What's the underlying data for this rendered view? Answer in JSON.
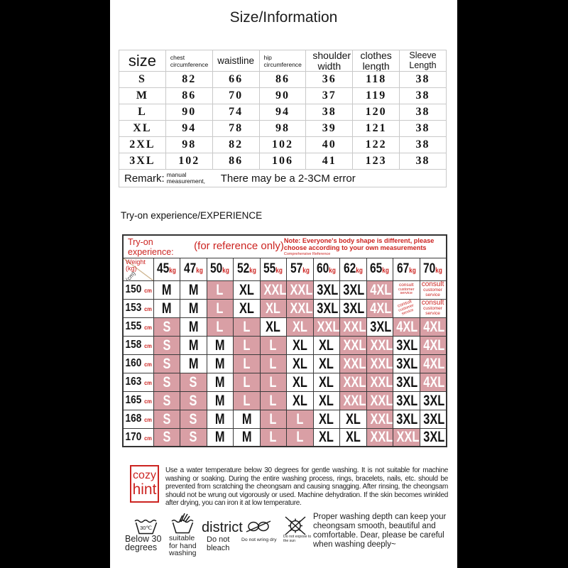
{
  "title": "Size/Information",
  "size_table": {
    "headers": [
      "size",
      "chest circumference",
      "waistline",
      "hip circumference",
      "shoulder width",
      "clothes length",
      "Sleeve Length"
    ],
    "rows": [
      {
        "size": "S",
        "values": [
          "82",
          "66",
          "86",
          "36",
          "118",
          "38"
        ]
      },
      {
        "size": "M",
        "values": [
          "86",
          "70",
          "90",
          "37",
          "119",
          "38"
        ]
      },
      {
        "size": "L",
        "values": [
          "90",
          "74",
          "94",
          "38",
          "120",
          "38"
        ]
      },
      {
        "size": "XL",
        "values": [
          "94",
          "78",
          "98",
          "39",
          "121",
          "38"
        ]
      },
      {
        "size": "2XL",
        "values": [
          "98",
          "82",
          "102",
          "40",
          "122",
          "38"
        ]
      },
      {
        "size": "3XL",
        "values": [
          "102",
          "86",
          "106",
          "41",
          "123",
          "38"
        ]
      }
    ],
    "remark_label": "Remark:",
    "remark_sub": "manual measurement,",
    "remark_text": "There may be a 2-3CM error"
  },
  "tryon": {
    "heading": "Try-on experience/EXPERIENCE",
    "corner_title": "Try-on experience:",
    "reference_label": "(for reference only)",
    "note": "Note: Everyone's body shape is different, please choose according to your own measurements",
    "note_small": "Comprehensive Reference",
    "axis_weight": "Weight (kg)",
    "axis_height": "(cm)",
    "weight_unit": "kg",
    "height_unit": "cm",
    "weights": [
      "45",
      "47",
      "50",
      "52",
      "55",
      "57",
      "60",
      "62",
      "65",
      "67",
      "70"
    ],
    "rows": [
      {
        "height": "150",
        "cells": [
          {
            "v": "M"
          },
          {
            "v": "M"
          },
          {
            "v": "L",
            "hl": true
          },
          {
            "v": "XL"
          },
          {
            "v": "XXL",
            "hl": true
          },
          {
            "v": "XXL",
            "hl": true
          },
          {
            "v": "3XL"
          },
          {
            "v": "3XL"
          },
          {
            "v": "4XL",
            "hl": true
          },
          {
            "v": "consult",
            "sub": "customer service",
            "consult": true,
            "small": true
          },
          {
            "v": "consult",
            "sub": "customer service",
            "consult": true
          }
        ]
      },
      {
        "height": "153",
        "cells": [
          {
            "v": "M"
          },
          {
            "v": "M"
          },
          {
            "v": "L",
            "hl": true
          },
          {
            "v": "XL"
          },
          {
            "v": "XL",
            "hl": true
          },
          {
            "v": "XXL",
            "hl": true
          },
          {
            "v": "3XL"
          },
          {
            "v": "3XL"
          },
          {
            "v": "4XL",
            "hl": true
          },
          {
            "v": "consult",
            "sub": "customer service",
            "consult": true,
            "small": true,
            "rot": true
          },
          {
            "v": "consult",
            "sub": "customer service",
            "consult": true
          }
        ]
      },
      {
        "height": "155",
        "cells": [
          {
            "v": "S",
            "hl": true
          },
          {
            "v": "M"
          },
          {
            "v": "L",
            "hl": true
          },
          {
            "v": "L",
            "hl": true
          },
          {
            "v": "XL"
          },
          {
            "v": "XL",
            "hl": true
          },
          {
            "v": "XXL",
            "hl": true
          },
          {
            "v": "XXL",
            "hl": true
          },
          {
            "v": "3XL"
          },
          {
            "v": "4XL",
            "hl": true
          },
          {
            "v": "4XL",
            "hl": true
          }
        ]
      },
      {
        "height": "158",
        "cells": [
          {
            "v": "S",
            "hl": true
          },
          {
            "v": "M"
          },
          {
            "v": "M"
          },
          {
            "v": "L",
            "hl": true
          },
          {
            "v": "L",
            "hl": true
          },
          {
            "v": "XL"
          },
          {
            "v": "XL"
          },
          {
            "v": "XXL",
            "hl": true
          },
          {
            "v": "XXL",
            "hl": true
          },
          {
            "v": "3XL"
          },
          {
            "v": "4XL",
            "hl": true
          }
        ]
      },
      {
        "height": "160",
        "cells": [
          {
            "v": "S",
            "hl": true
          },
          {
            "v": "M"
          },
          {
            "v": "M"
          },
          {
            "v": "L",
            "hl": true
          },
          {
            "v": "L",
            "hl": true
          },
          {
            "v": "XL"
          },
          {
            "v": "XL"
          },
          {
            "v": "XXL",
            "hl": true
          },
          {
            "v": "XXL",
            "hl": true
          },
          {
            "v": "3XL"
          },
          {
            "v": "4XL",
            "hl": true
          }
        ]
      },
      {
        "height": "163",
        "cells": [
          {
            "v": "S",
            "hl": true
          },
          {
            "v": "S",
            "hl": true
          },
          {
            "v": "M"
          },
          {
            "v": "L",
            "hl": true
          },
          {
            "v": "L",
            "hl": true
          },
          {
            "v": "XL"
          },
          {
            "v": "XL"
          },
          {
            "v": "XXL",
            "hl": true
          },
          {
            "v": "XXL",
            "hl": true
          },
          {
            "v": "3XL"
          },
          {
            "v": "4XL",
            "hl": true
          }
        ]
      },
      {
        "height": "165",
        "cells": [
          {
            "v": "S",
            "hl": true
          },
          {
            "v": "S",
            "hl": true
          },
          {
            "v": "M"
          },
          {
            "v": "L",
            "hl": true
          },
          {
            "v": "L",
            "hl": true
          },
          {
            "v": "XL"
          },
          {
            "v": "XL"
          },
          {
            "v": "XXL",
            "hl": true
          },
          {
            "v": "XXL",
            "hl": true
          },
          {
            "v": "3XL"
          },
          {
            "v": "3XL"
          }
        ]
      },
      {
        "height": "168",
        "cells": [
          {
            "v": "S",
            "hl": true
          },
          {
            "v": "S",
            "hl": true
          },
          {
            "v": "M"
          },
          {
            "v": "M"
          },
          {
            "v": "L",
            "hl": true
          },
          {
            "v": "L",
            "hl": true
          },
          {
            "v": "XL"
          },
          {
            "v": "XL"
          },
          {
            "v": "XXL",
            "hl": true
          },
          {
            "v": "3XL"
          },
          {
            "v": "3XL"
          }
        ]
      },
      {
        "height": "170",
        "cells": [
          {
            "v": "S",
            "hl": true
          },
          {
            "v": "S",
            "hl": true
          },
          {
            "v": "M"
          },
          {
            "v": "M"
          },
          {
            "v": "L",
            "hl": true
          },
          {
            "v": "L",
            "hl": true
          },
          {
            "v": "XL"
          },
          {
            "v": "XL"
          },
          {
            "v": "XXL",
            "hl": true
          },
          {
            "v": "XXL",
            "hl": true
          },
          {
            "v": "3XL"
          }
        ]
      }
    ]
  },
  "hint": {
    "box_line1": "cozy",
    "box_line2": "hint",
    "text": "Use a water temperature below 30 degrees for gentle washing. It is not suitable for machine washing or soaking. During the entire washing process, rings, bracelets, nails, etc. should be prevented from scratching the cheongsam and causing snagging. After rinsing, the cheongsam should not be wrung out vigorously or used. Machine dehydration. If the skin becomes wrinkled after drying, you can iron it at low temperature."
  },
  "care": {
    "icon_temp": "30℃",
    "items": [
      {
        "icon": "wash-below-30-icon",
        "label": "Below 30 degrees"
      },
      {
        "icon": "hand-wash-icon",
        "label": "suitable for hand washing"
      },
      {
        "icon": "district-text",
        "word": "district",
        "label": "Do not bleach"
      },
      {
        "icon": "no-wring-icon",
        "label": "Do not wring dry"
      },
      {
        "icon": "no-sun-icon",
        "label": "Do not expose to the sun"
      }
    ],
    "note": "Proper washing depth can keep your cheongsam smooth, beautiful and comfortable. Dear, please be careful when washing deeply~"
  },
  "colors": {
    "red": "#cc2421",
    "pink": "#d99fa5",
    "table_border": "#c9c9c9",
    "background": "#000000"
  }
}
